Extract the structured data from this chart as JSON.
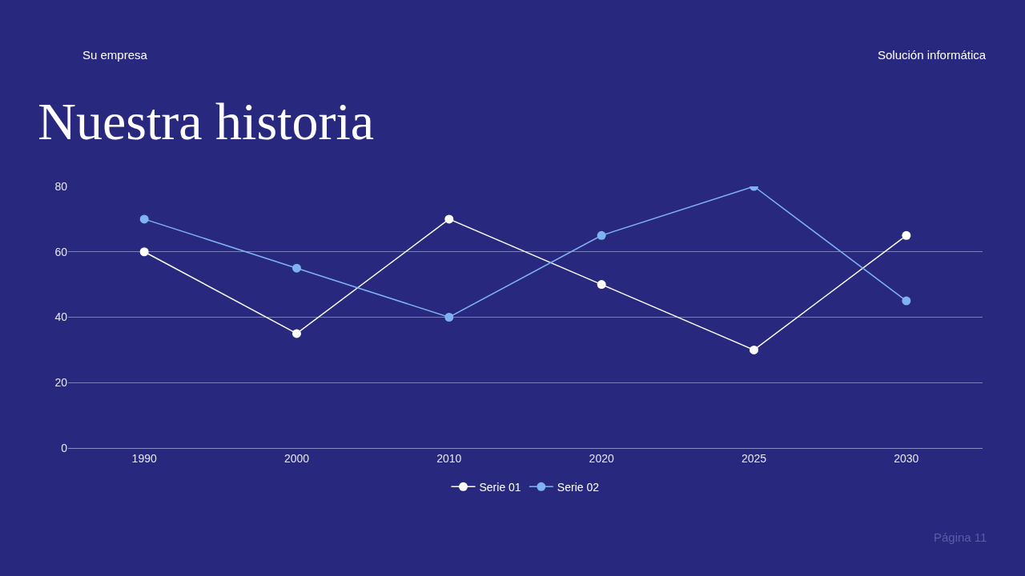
{
  "chart_data": {
    "type": "line",
    "title": "Nuestra historia",
    "annotations": [
      "Su empresa",
      "Solución informática",
      "Página 11"
    ],
    "categories": [
      "1990",
      "2000",
      "2010",
      "2020",
      "2025",
      "2030"
    ],
    "series": [
      {
        "name": "Serie 01",
        "color": "#ffffff",
        "values": [
          60,
          35,
          70,
          50,
          30,
          65
        ]
      },
      {
        "name": "Serie 02",
        "color": "#7fb2f0",
        "values": [
          70,
          55,
          40,
          65,
          80,
          45
        ]
      }
    ],
    "ylim": [
      0,
      80
    ],
    "yticks": [
      0,
      20,
      40,
      60,
      80
    ],
    "grid": "y",
    "legend": "bottom",
    "marker": "circle",
    "line_style": "solid"
  }
}
